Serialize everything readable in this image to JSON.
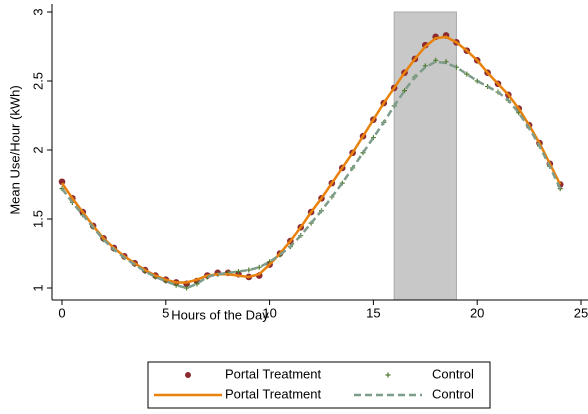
{
  "chart_data": {
    "type": "line",
    "xlabel": "Hours of the Day",
    "ylabel": "Mean Use/Hour (kWh)",
    "x": [
      0,
      0.5,
      1,
      1.5,
      2,
      2.5,
      3,
      3.5,
      4,
      4.5,
      5,
      5.5,
      6,
      6.5,
      7,
      7.5,
      8,
      8.5,
      9,
      9.5,
      10,
      10.5,
      11,
      11.5,
      12,
      12.5,
      13,
      13.5,
      14,
      14.5,
      15,
      15.5,
      16,
      16.5,
      17,
      17.5,
      18,
      18.5,
      19,
      19.5,
      20,
      20.5,
      21,
      21.5,
      22,
      22.5,
      23,
      23.5,
      24
    ],
    "series": [
      {
        "name": "Portal Treatment",
        "style": "dot",
        "color": "#8c2a2f",
        "values": [
          1.77,
          1.65,
          1.55,
          1.45,
          1.36,
          1.29,
          1.23,
          1.18,
          1.13,
          1.09,
          1.06,
          1.04,
          1.03,
          1.05,
          1.09,
          1.11,
          1.11,
          1.1,
          1.08,
          1.09,
          1.17,
          1.25,
          1.34,
          1.44,
          1.55,
          1.65,
          1.76,
          1.87,
          1.98,
          2.1,
          2.22,
          2.34,
          2.45,
          2.56,
          2.66,
          2.76,
          2.82,
          2.83,
          2.78,
          2.72,
          2.65,
          2.56,
          2.48,
          2.4,
          2.3,
          2.18,
          2.05,
          1.9,
          1.75
        ]
      },
      {
        "name": "Control",
        "style": "plus",
        "color": "#4e7a2f",
        "values": [
          1.72,
          1.62,
          1.53,
          1.44,
          1.35,
          1.28,
          1.22,
          1.17,
          1.12,
          1.08,
          1.05,
          1.02,
          1.0,
          1.03,
          1.08,
          1.1,
          1.11,
          1.12,
          1.13,
          1.15,
          1.19,
          1.24,
          1.3,
          1.38,
          1.47,
          1.56,
          1.66,
          1.76,
          1.87,
          1.98,
          2.09,
          2.2,
          2.32,
          2.43,
          2.53,
          2.61,
          2.65,
          2.64,
          2.6,
          2.55,
          2.5,
          2.46,
          2.42,
          2.36,
          2.27,
          2.16,
          2.03,
          1.88,
          1.72
        ]
      },
      {
        "name": "Portal Treatment",
        "style": "solid",
        "color": "#e8820c",
        "values": [
          1.76,
          1.65,
          1.55,
          1.45,
          1.36,
          1.29,
          1.23,
          1.18,
          1.13,
          1.09,
          1.06,
          1.04,
          1.04,
          1.06,
          1.09,
          1.1,
          1.1,
          1.09,
          1.08,
          1.1,
          1.17,
          1.25,
          1.34,
          1.44,
          1.55,
          1.65,
          1.76,
          1.87,
          1.98,
          2.1,
          2.22,
          2.34,
          2.45,
          2.56,
          2.66,
          2.75,
          2.81,
          2.82,
          2.78,
          2.72,
          2.65,
          2.56,
          2.48,
          2.4,
          2.3,
          2.18,
          2.05,
          1.9,
          1.75
        ]
      },
      {
        "name": "Control",
        "style": "dashed",
        "color": "#7e9c8a",
        "values": [
          1.72,
          1.62,
          1.53,
          1.44,
          1.35,
          1.28,
          1.22,
          1.17,
          1.12,
          1.08,
          1.05,
          1.02,
          1.0,
          1.03,
          1.08,
          1.1,
          1.11,
          1.12,
          1.13,
          1.15,
          1.19,
          1.24,
          1.3,
          1.38,
          1.47,
          1.56,
          1.66,
          1.76,
          1.87,
          1.98,
          2.09,
          2.2,
          2.32,
          2.43,
          2.53,
          2.6,
          2.64,
          2.63,
          2.6,
          2.55,
          2.5,
          2.46,
          2.42,
          2.36,
          2.27,
          2.16,
          2.03,
          1.88,
          1.72
        ]
      }
    ],
    "shade": [
      16,
      19
    ],
    "shade_color": "#c8c8c8",
    "xlim": [
      0,
      25
    ],
    "xticks": [
      0,
      5,
      10,
      15,
      20,
      25
    ],
    "ylim": [
      1,
      3
    ],
    "yticks": [
      1,
      1.5,
      2,
      2.5,
      3
    ],
    "legend": "bottom"
  }
}
